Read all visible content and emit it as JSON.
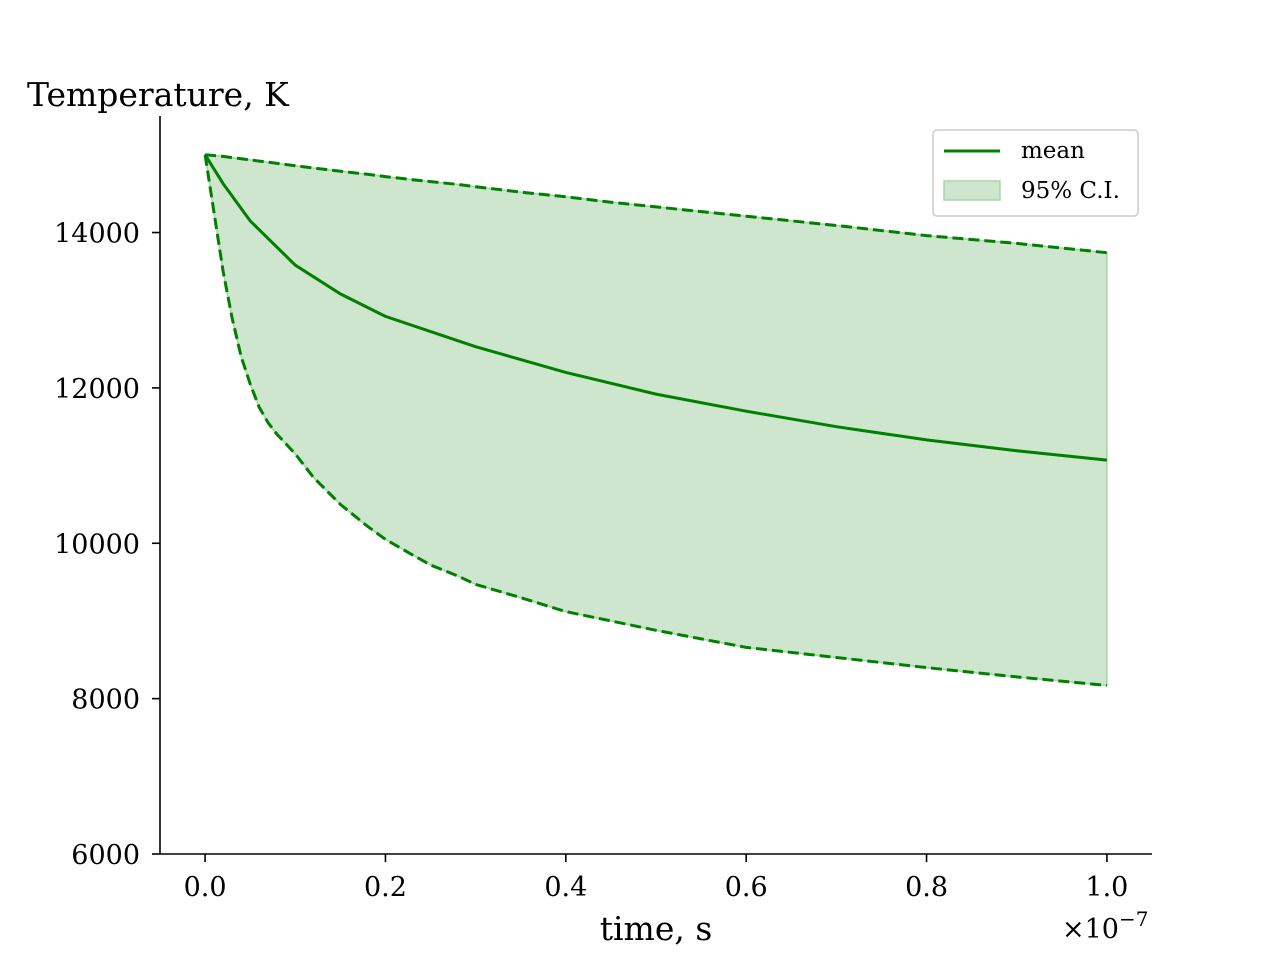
{
  "chart_data": {
    "type": "line",
    "title": "",
    "ylabel": "Temperature, K",
    "xlabel": "time, s",
    "x_offset_label": "×10",
    "x_offset_exponent": "−7",
    "xlim": [
      -0.05,
      1.05
    ],
    "ylim": [
      6000,
      15500
    ],
    "x_ticks": [
      0.0,
      0.2,
      0.4,
      0.6,
      0.8,
      1.0
    ],
    "x_tick_labels": [
      "0.0",
      "0.2",
      "0.4",
      "0.6",
      "0.8",
      "1.0"
    ],
    "y_ticks": [
      6000,
      8000,
      10000,
      12000,
      14000
    ],
    "y_tick_labels": [
      "6000",
      "8000",
      "10000",
      "12000",
      "14000"
    ],
    "grid": false,
    "legend_position": "top-right",
    "colors": {
      "line": "#008000",
      "band": "#cde6cd",
      "band_edge": "#a8d4a8"
    },
    "series": [
      {
        "name": "mean",
        "style": "solid",
        "x": [
          0.0,
          0.02,
          0.05,
          0.1,
          0.15,
          0.2,
          0.3,
          0.4,
          0.5,
          0.6,
          0.7,
          0.8,
          0.9,
          1.0
        ],
        "y": [
          15000,
          14630,
          14150,
          13580,
          13210,
          12920,
          12530,
          12200,
          11920,
          11700,
          11500,
          11330,
          11190,
          11070
        ]
      }
    ],
    "band": {
      "name": "95% C.I.",
      "x": [
        0.0,
        0.02,
        0.03,
        0.04,
        0.05,
        0.06,
        0.07,
        0.08,
        0.1,
        0.12,
        0.15,
        0.18,
        0.2,
        0.23,
        0.25,
        0.28,
        0.3,
        0.35,
        0.4,
        0.45,
        0.5,
        0.6,
        0.7,
        0.8,
        0.9,
        1.0
      ],
      "upper": [
        15000,
        14980,
        14965,
        14950,
        14935,
        14920,
        14905,
        14890,
        14860,
        14830,
        14790,
        14750,
        14720,
        14680,
        14655,
        14620,
        14590,
        14520,
        14460,
        14390,
        14330,
        14210,
        14090,
        13960,
        13860,
        13740
      ],
      "lower": [
        15000,
        13500,
        12900,
        12400,
        12050,
        11750,
        11550,
        11400,
        11150,
        10850,
        10500,
        10220,
        10050,
        9850,
        9720,
        9580,
        9470,
        9300,
        9120,
        9000,
        8880,
        8660,
        8530,
        8400,
        8280,
        8170
      ]
    }
  }
}
